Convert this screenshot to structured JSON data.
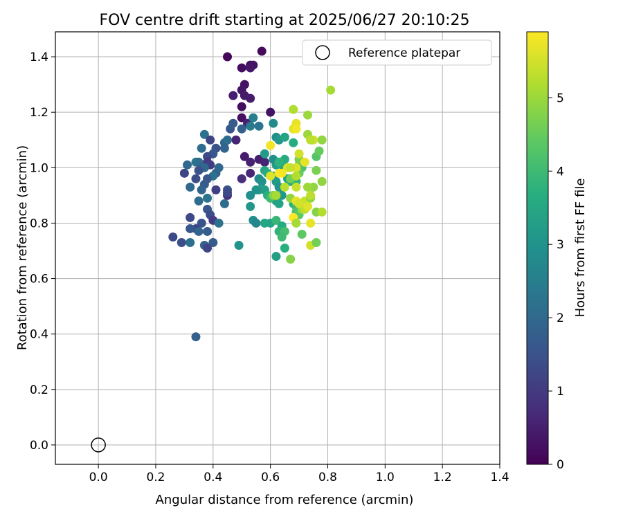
{
  "chart_data": {
    "type": "scatter",
    "title": "FOV centre drift starting at 2025/06/27 20:10:25",
    "xlabel": "Angular distance from reference (arcmin)",
    "ylabel": "Rotation from reference (arcmin)",
    "xlim": [
      -0.15,
      1.4
    ],
    "ylim": [
      -0.07,
      1.49
    ],
    "xticks": [
      "0.0",
      "0.2",
      "0.4",
      "0.6",
      "0.8",
      "1.0",
      "1.2",
      "1.4"
    ],
    "yticks": [
      "0.0",
      "0.2",
      "0.4",
      "0.6",
      "0.8",
      "1.0",
      "1.2",
      "1.4"
    ],
    "grid": true,
    "legend": {
      "placement": "top-right",
      "label": "Reference platepar"
    },
    "colorbar": {
      "label": "Hours from first FF file",
      "range": [
        0,
        5.9
      ],
      "ticks": [
        "0",
        "1",
        "2",
        "3",
        "4",
        "5"
      ],
      "colormap": "viridis"
    },
    "reference": {
      "x": 0.0,
      "y": 0.0
    },
    "points": [
      [
        0.45,
        1.4,
        0.1
      ],
      [
        0.57,
        1.42,
        0.15
      ],
      [
        0.5,
        1.36,
        0.2
      ],
      [
        0.53,
        1.37,
        0.25
      ],
      [
        0.54,
        1.37,
        0.3
      ],
      [
        0.53,
        1.36,
        0.35
      ],
      [
        0.51,
        1.3,
        0.3
      ],
      [
        0.5,
        1.28,
        0.35
      ],
      [
        0.51,
        1.26,
        0.4
      ],
      [
        0.53,
        1.25,
        0.45
      ],
      [
        0.47,
        1.26,
        0.5
      ],
      [
        0.5,
        1.22,
        0.2
      ],
      [
        0.5,
        1.18,
        0.25
      ],
      [
        0.6,
        1.2,
        0.3
      ],
      [
        0.52,
        1.16,
        0.55
      ],
      [
        0.48,
        1.1,
        0.6
      ],
      [
        0.56,
        1.03,
        0.5
      ],
      [
        0.51,
        1.04,
        0.45
      ],
      [
        0.53,
        1.02,
        0.55
      ],
      [
        0.58,
        1.02,
        0.6
      ],
      [
        0.53,
        0.98,
        0.65
      ],
      [
        0.56,
        0.96,
        0.7
      ],
      [
        0.5,
        0.96,
        0.75
      ],
      [
        0.45,
        0.9,
        0.8
      ],
      [
        0.46,
        1.14,
        1.6
      ],
      [
        0.47,
        1.16,
        1.7
      ],
      [
        0.5,
        1.14,
        1.8
      ],
      [
        0.53,
        1.15,
        2.4
      ],
      [
        0.56,
        1.15,
        2.3
      ],
      [
        0.54,
        1.18,
        2.5
      ],
      [
        0.44,
        1.09,
        2.0
      ],
      [
        0.45,
        1.1,
        2.1
      ],
      [
        0.44,
        1.07,
        1.9
      ],
      [
        0.37,
        1.12,
        2.2
      ],
      [
        0.39,
        1.1,
        1.2
      ],
      [
        0.41,
        1.07,
        1.5
      ],
      [
        0.4,
        1.05,
        1.6
      ],
      [
        0.36,
        1.07,
        2.1
      ],
      [
        0.38,
        1.04,
        1.3
      ],
      [
        0.38,
        1.02,
        1.0
      ],
      [
        0.39,
        1.01,
        1.1
      ],
      [
        0.31,
        1.01,
        2.0
      ],
      [
        0.3,
        0.98,
        1.2
      ],
      [
        0.34,
        1.02,
        2.3
      ],
      [
        0.35,
        1.02,
        2.1
      ],
      [
        0.36,
        1.0,
        1.8
      ],
      [
        0.37,
        1.0,
        2.0
      ],
      [
        0.35,
        0.99,
        1.5
      ],
      [
        0.41,
        0.98,
        1.8
      ],
      [
        0.42,
        1.0,
        2.0
      ],
      [
        0.4,
        0.97,
        2.2
      ],
      [
        0.34,
        0.96,
        1.4
      ],
      [
        0.38,
        0.96,
        1.6
      ],
      [
        0.37,
        0.94,
        1.7
      ],
      [
        0.32,
        0.93,
        2.0
      ],
      [
        0.36,
        0.92,
        1.9
      ],
      [
        0.41,
        0.92,
        1.1
      ],
      [
        0.45,
        0.92,
        1.5
      ],
      [
        0.45,
        0.91,
        1.3
      ],
      [
        0.38,
        0.89,
        2.3
      ],
      [
        0.35,
        0.88,
        2.1
      ],
      [
        0.44,
        0.87,
        2.1
      ],
      [
        0.38,
        0.85,
        1.6
      ],
      [
        0.39,
        0.83,
        1.4
      ],
      [
        0.4,
        0.81,
        1.0
      ],
      [
        0.42,
        0.8,
        2.2
      ],
      [
        0.32,
        0.82,
        1.3
      ],
      [
        0.36,
        0.8,
        1.5
      ],
      [
        0.34,
        0.78,
        1.2
      ],
      [
        0.32,
        0.78,
        1.6
      ],
      [
        0.35,
        0.77,
        1.9
      ],
      [
        0.38,
        0.77,
        1.7
      ],
      [
        0.26,
        0.75,
        1.3
      ],
      [
        0.29,
        0.73,
        1.4
      ],
      [
        0.32,
        0.73,
        2.2
      ],
      [
        0.37,
        0.72,
        1.8
      ],
      [
        0.4,
        0.73,
        1.7
      ],
      [
        0.38,
        0.71,
        1.2
      ],
      [
        0.34,
        0.39,
        1.8
      ],
      [
        0.49,
        0.72,
        3.0
      ],
      [
        0.54,
        0.81,
        2.9
      ],
      [
        0.55,
        0.8,
        2.7
      ],
      [
        0.53,
        0.86,
        3.1
      ],
      [
        0.53,
        0.9,
        2.9
      ],
      [
        0.56,
        0.92,
        3.2
      ],
      [
        0.56,
        0.96,
        2.8
      ],
      [
        0.57,
        0.95,
        3.0
      ],
      [
        0.58,
        0.92,
        3.3
      ],
      [
        0.55,
        0.92,
        3.0
      ],
      [
        0.58,
        1.05,
        3.2
      ],
      [
        0.58,
        0.99,
        3.5
      ],
      [
        0.59,
        0.98,
        3.6
      ],
      [
        0.61,
        0.97,
        3.4
      ],
      [
        0.62,
        1.01,
        3.3
      ],
      [
        0.61,
        1.03,
        2.9
      ],
      [
        0.64,
        1.01,
        3.5
      ],
      [
        0.65,
        1.03,
        3.6
      ],
      [
        0.63,
        1.02,
        3.8
      ],
      [
        0.62,
        0.95,
        3.2
      ],
      [
        0.63,
        0.93,
        3.0
      ],
      [
        0.64,
        0.9,
        3.1
      ],
      [
        0.62,
        0.88,
        3.3
      ],
      [
        0.63,
        0.87,
        3.4
      ],
      [
        0.59,
        0.9,
        3.7
      ],
      [
        0.6,
        0.89,
        4.0
      ],
      [
        0.58,
        0.8,
        3.5
      ],
      [
        0.6,
        0.8,
        3.4
      ],
      [
        0.62,
        0.81,
        3.9
      ],
      [
        0.64,
        0.79,
        3.6
      ],
      [
        0.63,
        0.77,
        3.8
      ],
      [
        0.65,
        0.77,
        4.1
      ],
      [
        0.64,
        0.75,
        4.0
      ],
      [
        0.62,
        0.68,
        3.3
      ],
      [
        0.65,
        0.71,
        3.7
      ],
      [
        0.61,
        1.16,
        2.8
      ],
      [
        0.62,
        1.11,
        2.9
      ],
      [
        0.63,
        1.1,
        3.1
      ],
      [
        0.65,
        1.11,
        3.4
      ],
      [
        0.68,
        1.09,
        3.6
      ],
      [
        0.66,
        0.96,
        3.4
      ],
      [
        0.67,
        0.95,
        3.6
      ],
      [
        0.69,
        0.95,
        3.8
      ],
      [
        0.68,
        0.87,
        3.7
      ],
      [
        0.69,
        0.86,
        4.0
      ],
      [
        0.69,
        0.84,
        4.2
      ],
      [
        0.7,
        0.83,
        4.4
      ],
      [
        0.7,
        1.03,
        3.8
      ],
      [
        0.7,
        1.01,
        4.0
      ],
      [
        0.71,
        1.0,
        4.2
      ],
      [
        0.7,
        0.98,
        4.5
      ],
      [
        0.69,
        1.0,
        5.6
      ],
      [
        0.7,
        1.03,
        4.7
      ],
      [
        0.67,
        0.67,
        4.8
      ],
      [
        0.71,
        0.76,
        4.4
      ],
      [
        0.71,
        0.85,
        5.0
      ],
      [
        0.72,
        0.85,
        5.3
      ],
      [
        0.72,
        0.88,
        5.4
      ],
      [
        0.74,
        0.89,
        4.9
      ],
      [
        0.74,
        0.8,
        5.7
      ],
      [
        0.74,
        0.72,
        5.5
      ],
      [
        0.76,
        0.73,
        4.6
      ],
      [
        0.76,
        0.84,
        4.8
      ],
      [
        0.78,
        0.84,
        5.2
      ],
      [
        0.78,
        0.95,
        4.9
      ],
      [
        0.76,
        0.99,
        4.7
      ],
      [
        0.76,
        1.04,
        4.3
      ],
      [
        0.77,
        1.06,
        4.5
      ],
      [
        0.78,
        1.1,
        4.9
      ],
      [
        0.75,
        1.1,
        5.5
      ],
      [
        0.73,
        1.12,
        5.0
      ],
      [
        0.74,
        1.1,
        5.3
      ],
      [
        0.68,
        1.14,
        5.6
      ],
      [
        0.69,
        1.16,
        5.7
      ],
      [
        0.69,
        1.14,
        5.8
      ],
      [
        0.68,
        1.21,
        5.2
      ],
      [
        0.73,
        1.19,
        5.0
      ],
      [
        0.81,
        1.28,
        5.1
      ],
      [
        0.7,
        1.05,
        5.5
      ],
      [
        0.72,
        1.02,
        5.7
      ],
      [
        0.66,
        1.0,
        5.6
      ],
      [
        0.67,
        1.0,
        5.4
      ],
      [
        0.64,
        0.98,
        5.8
      ],
      [
        0.63,
        0.98,
        5.9
      ],
      [
        0.6,
        0.97,
        5.6
      ],
      [
        0.6,
        1.08,
        5.8
      ],
      [
        0.61,
        0.9,
        4.8
      ],
      [
        0.62,
        0.9,
        5.1
      ],
      [
        0.65,
        0.93,
        5.3
      ],
      [
        0.67,
        0.96,
        4.6
      ],
      [
        0.69,
        0.97,
        5.2
      ],
      [
        0.69,
        0.93,
        5.4
      ],
      [
        0.67,
        0.89,
        4.9
      ],
      [
        0.69,
        0.88,
        5.7
      ],
      [
        0.7,
        0.87,
        5.5
      ],
      [
        0.68,
        0.82,
        5.9
      ],
      [
        0.69,
        0.8,
        5.1
      ],
      [
        0.73,
        0.86,
        5.6
      ],
      [
        0.74,
        0.9,
        5.3
      ],
      [
        0.75,
        0.93,
        4.9
      ],
      [
        0.73,
        0.93,
        5.0
      ]
    ]
  }
}
